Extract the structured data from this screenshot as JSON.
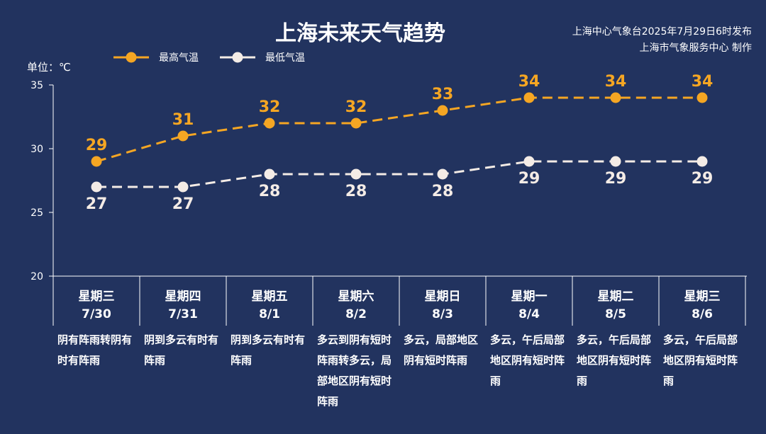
{
  "header": {
    "title": "上海未来天气趋势",
    "issuer_line1": "上海中心气象台2025年7月29日6时发布",
    "issuer_line2": "上海市气象服务中心 制作"
  },
  "legend": {
    "high_label": "最高气温",
    "low_label": "最低气温"
  },
  "unit_label": "单位：℃",
  "colors": {
    "background": "#22335f",
    "high": "#f5a623",
    "low": "#f4ece6",
    "axis": "#ffffff"
  },
  "chart_data": {
    "type": "line",
    "categories": [
      "7/30",
      "7/31",
      "8/1",
      "8/2",
      "8/3",
      "8/4",
      "8/5",
      "8/6"
    ],
    "weekdays": [
      "星期三",
      "星期四",
      "星期五",
      "星期六",
      "星期日",
      "星期一",
      "星期二",
      "星期三"
    ],
    "series": [
      {
        "name": "最高气温",
        "values": [
          29,
          31,
          32,
          32,
          33,
          34,
          34,
          34
        ]
      },
      {
        "name": "最低气温",
        "values": [
          27,
          27,
          28,
          28,
          28,
          29,
          29,
          29
        ]
      }
    ],
    "ylim": [
      20,
      35
    ],
    "yticks": [
      20,
      25,
      30,
      35
    ],
    "title": "上海未来天气趋势",
    "ylabel": "单位：℃",
    "legend_position": "top-left",
    "grid": false
  },
  "forecast": [
    {
      "weekday": "星期三",
      "date": "7/30",
      "desc": "阴有阵雨转阴有时有阵雨"
    },
    {
      "weekday": "星期四",
      "date": "7/31",
      "desc": "阴到多云有时有阵雨"
    },
    {
      "weekday": "星期五",
      "date": "8/1",
      "desc": "阴到多云有时有阵雨"
    },
    {
      "weekday": "星期六",
      "date": "8/2",
      "desc": "多云到阴有短时阵雨转多云，局部地区阴有短时阵雨"
    },
    {
      "weekday": "星期日",
      "date": "8/3",
      "desc": "多云，局部地区阴有短时阵雨"
    },
    {
      "weekday": "星期一",
      "date": "8/4",
      "desc": "多云，午后局部地区阴有短时阵雨"
    },
    {
      "weekday": "星期二",
      "date": "8/5",
      "desc": "多云，午后局部地区阴有短时阵雨"
    },
    {
      "weekday": "星期三",
      "date": "8/6",
      "desc": "多云，午后局部地区阴有短时阵雨"
    }
  ]
}
